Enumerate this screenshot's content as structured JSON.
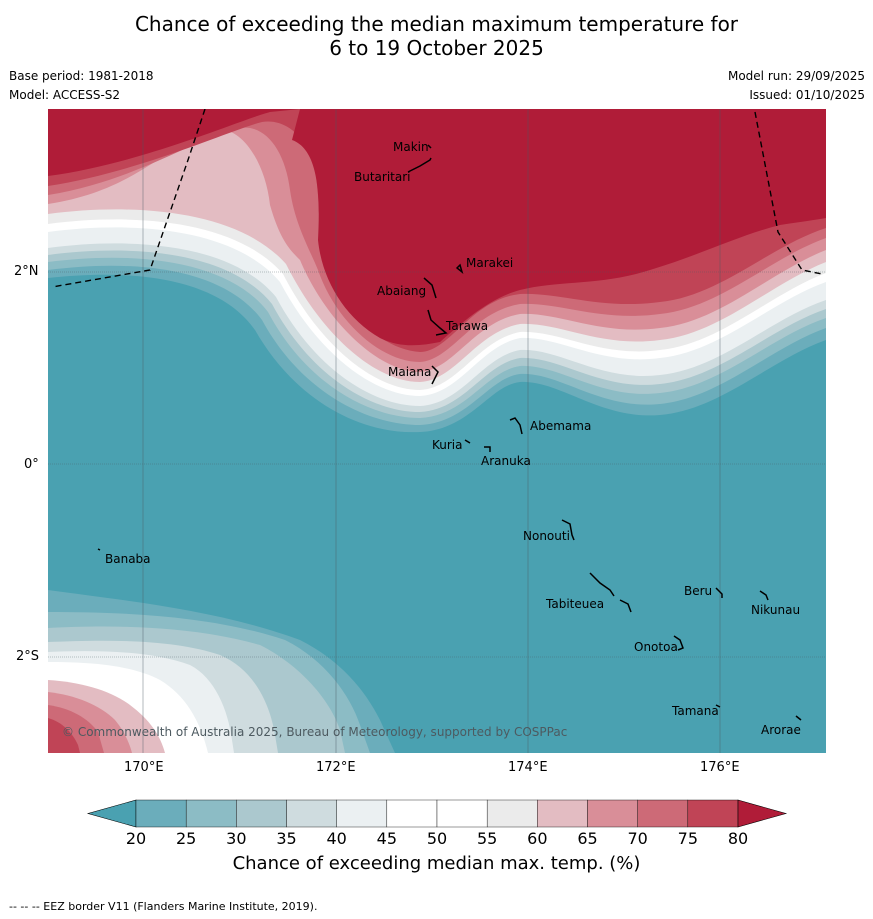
{
  "title": {
    "line1": "Chance of exceeding the median maximum temperature for",
    "line2": "6 to 19 October 2025"
  },
  "meta": {
    "base_period": "Base period: 1981-2018",
    "model": "Model: ACCESS-S2",
    "model_run": "Model run: 29/09/2025",
    "issued": "Issued: 01/10/2025"
  },
  "map": {
    "lat_labels": [
      "2°N",
      "0°",
      "2°S"
    ],
    "lon_labels": [
      "170°E",
      "172°E",
      "174°E",
      "176°E"
    ],
    "copyright": "© Commonwealth of Australia 2025, Bureau of Meteorology, supported by COSPPac",
    "places": [
      "Makin",
      "Butaritari",
      "Marakei",
      "Abaiang",
      "Tarawa",
      "Maiana",
      "Abemama",
      "Kuria",
      "Aranuka",
      "Nonouti",
      "Banaba",
      "Beru",
      "Nikunau",
      "Tabiteuea",
      "Onotoa",
      "Tamana",
      "Arorae"
    ]
  },
  "colorbar": {
    "label": "Chance of exceeding median max. temp. (%)",
    "ticks": [
      "20",
      "25",
      "30",
      "35",
      "40",
      "45",
      "50",
      "55",
      "60",
      "65",
      "70",
      "75",
      "80"
    ],
    "colors": [
      "#4aa1b1",
      "#6badbb",
      "#8cbcc5",
      "#abc8ce",
      "#cfdcdf",
      "#ebf0f2",
      "#ffffff",
      "#ffffff",
      "#ebebeb",
      "#e3bcc2",
      "#d98e98",
      "#cd6a77",
      "#c04456",
      "#b01c38"
    ]
  },
  "footer": "--  --  -- EEZ border V11 (Flanders Marine Institute, 2019)."
}
